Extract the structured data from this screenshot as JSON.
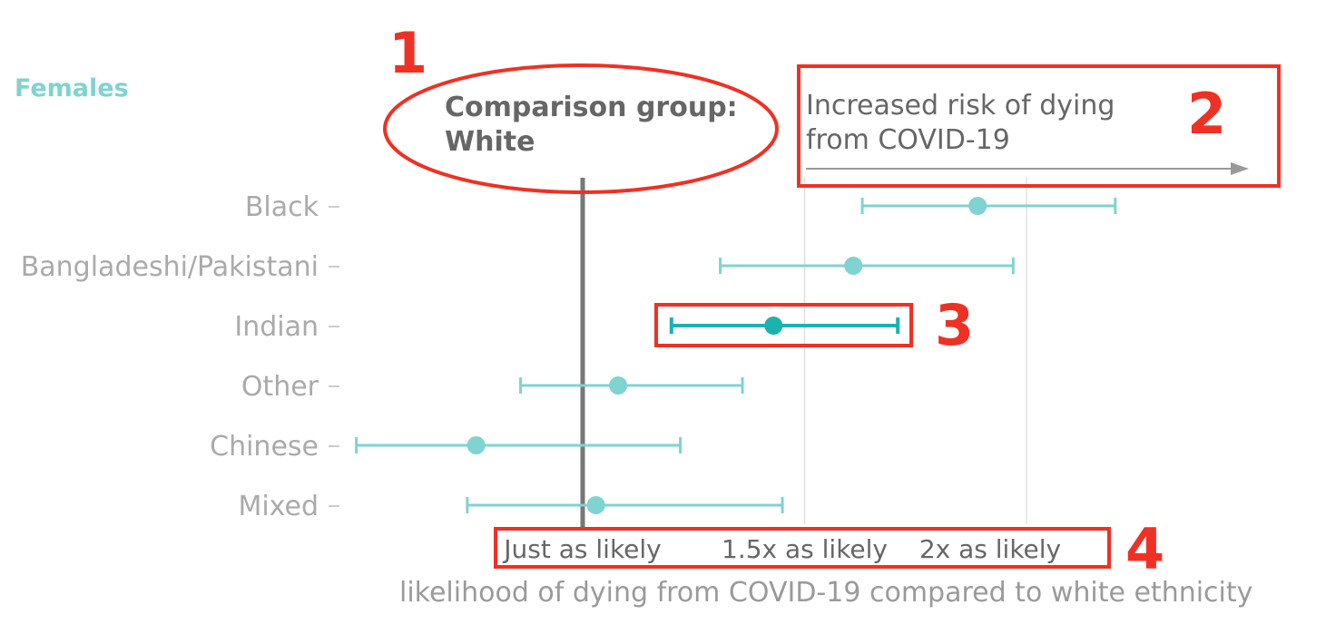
{
  "panel_title": "Females",
  "comparison": {
    "line1": "Comparison group:",
    "line2": "White"
  },
  "risk_note": {
    "line1": "Increased risk of dying",
    "line2": "from COVID-19"
  },
  "callouts": [
    "1",
    "2",
    "3",
    "4"
  ],
  "colors": {
    "accent": "#7fd3d0",
    "highlight": "#1ab3ae",
    "annotation": "#ee3124",
    "reference_line": "#777777"
  },
  "chart_data": {
    "type": "scatter",
    "subtype": "forest-plot",
    "xlabel": "likelihood of dying from COVID-19 compared to white ethnicity",
    "x_ticks": [
      {
        "value": 1.0,
        "label": "Just as likely"
      },
      {
        "value": 1.5,
        "label": "1.5x as likely"
      },
      {
        "value": 2.0,
        "label": "2x as likely"
      }
    ],
    "xlim": [
      0.49,
      2.48
    ],
    "reference_value": 1.0,
    "categories": [
      "Black",
      "Bangladeshi/Pakistani",
      "Indian",
      "Other",
      "Chinese",
      "Mixed"
    ],
    "points": [
      {
        "category": "Black",
        "estimate": 1.89,
        "lower": 1.63,
        "upper": 2.2
      },
      {
        "category": "Bangladeshi/Pakistani",
        "estimate": 1.61,
        "lower": 1.31,
        "upper": 1.97
      },
      {
        "category": "Indian",
        "estimate": 1.43,
        "lower": 1.2,
        "upper": 1.71
      },
      {
        "category": "Other",
        "estimate": 1.08,
        "lower": 0.86,
        "upper": 1.36
      },
      {
        "category": "Chinese",
        "estimate": 0.76,
        "lower": 0.49,
        "upper": 1.22
      },
      {
        "category": "Mixed",
        "estimate": 1.03,
        "lower": 0.74,
        "upper": 1.45
      }
    ],
    "highlighted_category": "Indian",
    "grid": true
  }
}
